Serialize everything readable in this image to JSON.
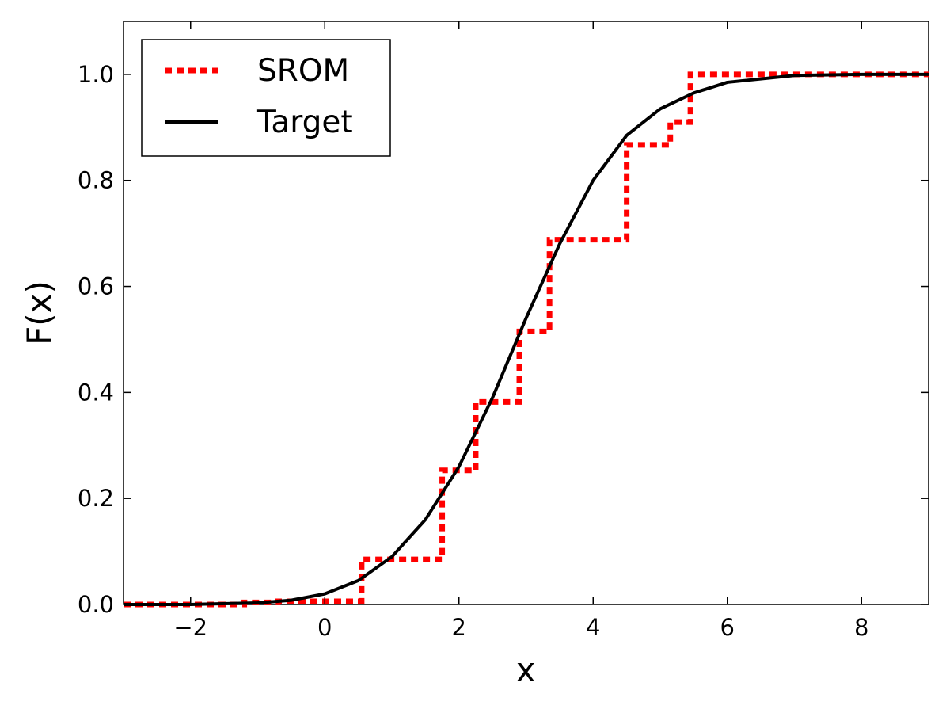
{
  "chart_data": {
    "type": "line",
    "xlabel": "x",
    "ylabel": "F(x)",
    "xlim": [
      -3,
      9
    ],
    "ylim": [
      0,
      1.1
    ],
    "x_ticks": [
      "−2",
      "0",
      "2",
      "4",
      "6",
      "8"
    ],
    "x_tick_values": [
      -2,
      0,
      2,
      4,
      6,
      8
    ],
    "y_ticks": [
      "0.0",
      "0.2",
      "0.4",
      "0.6",
      "0.8",
      "1.0"
    ],
    "y_tick_values": [
      0,
      0.2,
      0.4,
      0.6,
      0.8,
      1.0
    ],
    "grid": false,
    "legend_position": "top-left",
    "series": [
      {
        "name": "SROM",
        "style": "dashed-step",
        "color": "#ff0000",
        "x": [
          -3.0,
          -1.2,
          -0.7,
          0.55,
          1.75,
          2.25,
          2.9,
          3.35,
          4.5,
          5.15,
          5.45,
          9.0
        ],
        "y": [
          0.0,
          0.004,
          0.006,
          0.085,
          0.253,
          0.382,
          0.515,
          0.688,
          0.867,
          0.91,
          1.0,
          1.0
        ]
      },
      {
        "name": "Target",
        "style": "solid",
        "color": "#000000",
        "x": [
          -3.0,
          -2.0,
          -1.0,
          -0.5,
          0.0,
          0.5,
          1.0,
          1.5,
          2.0,
          2.5,
          3.0,
          3.5,
          4.0,
          4.5,
          5.0,
          5.5,
          6.0,
          7.0,
          8.0,
          9.0
        ],
        "y": [
          0.0,
          0.0,
          0.003,
          0.008,
          0.02,
          0.045,
          0.09,
          0.16,
          0.26,
          0.39,
          0.54,
          0.68,
          0.8,
          0.885,
          0.935,
          0.965,
          0.985,
          0.998,
          1.0,
          1.0
        ]
      }
    ]
  }
}
